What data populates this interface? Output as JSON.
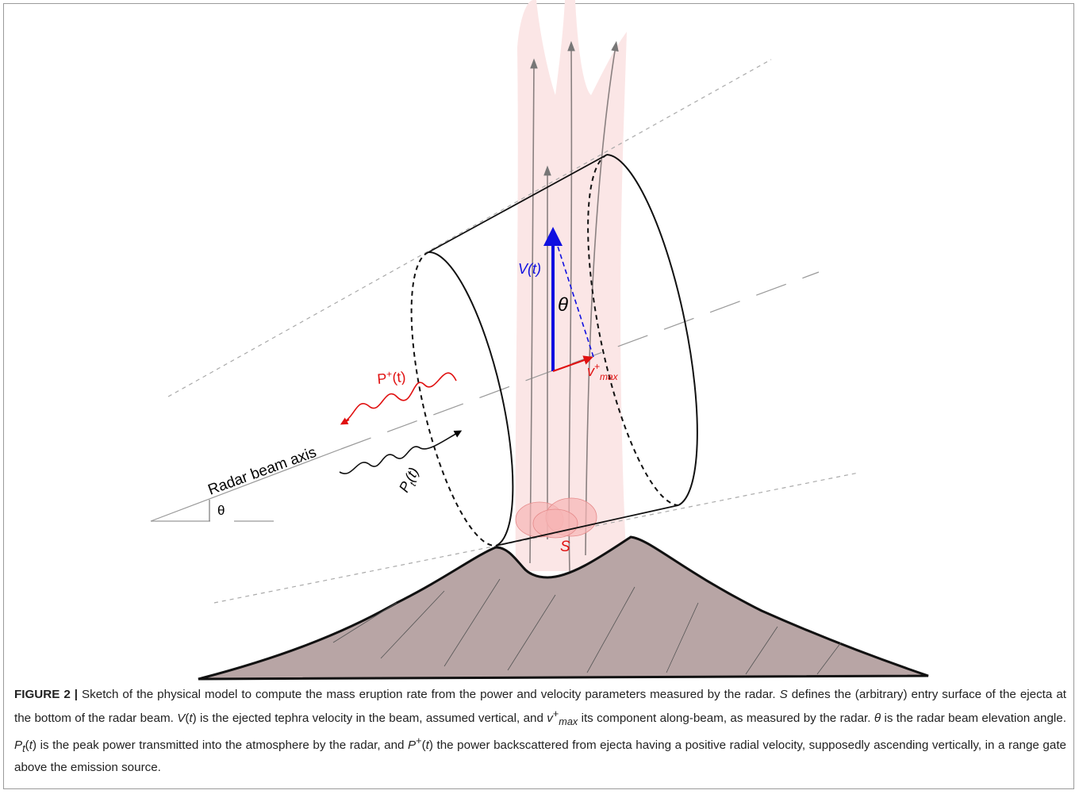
{
  "figure": {
    "labels": {
      "radar_beam_axis": "Radar beam axis",
      "elevation_angle": "θ",
      "angle": "θ",
      "velocity": {
        "main": "V(t)"
      },
      "vmax": {
        "main": "v",
        "sup": "+",
        "sub": "max"
      },
      "backscattered": {
        "main": "P",
        "sup": "+",
        "rest": "(t)"
      },
      "transmitted": {
        "main": "P",
        "sub": "t",
        "rest": "(t)"
      },
      "surface": "S"
    },
    "caption": {
      "label": "FIGURE 2 |",
      "parts": [
        " Sketch of the physical model to compute the mass eruption rate from the power and velocity parameters measured by the radar. ",
        "S",
        " defines the (arbitrary) entry surface of the ejecta at the bottom of the radar beam. ",
        "V",
        "(",
        "t",
        ") is the ejected tephra velocity in the beam, assumed vertical, and ",
        "v",
        "+",
        "max",
        " its component along-beam, as measured by the radar. ",
        "θ",
        " is the radar beam elevation angle. ",
        "P",
        "t",
        "(",
        "t",
        ") is the peak power transmitted into the atmosphere by the radar, and ",
        "P",
        "+",
        "(",
        "t",
        ") the power backscattered from ejecta having a positive radial velocity, supposedly ascending vertically, in a range gate above the emission source."
      ]
    }
  }
}
